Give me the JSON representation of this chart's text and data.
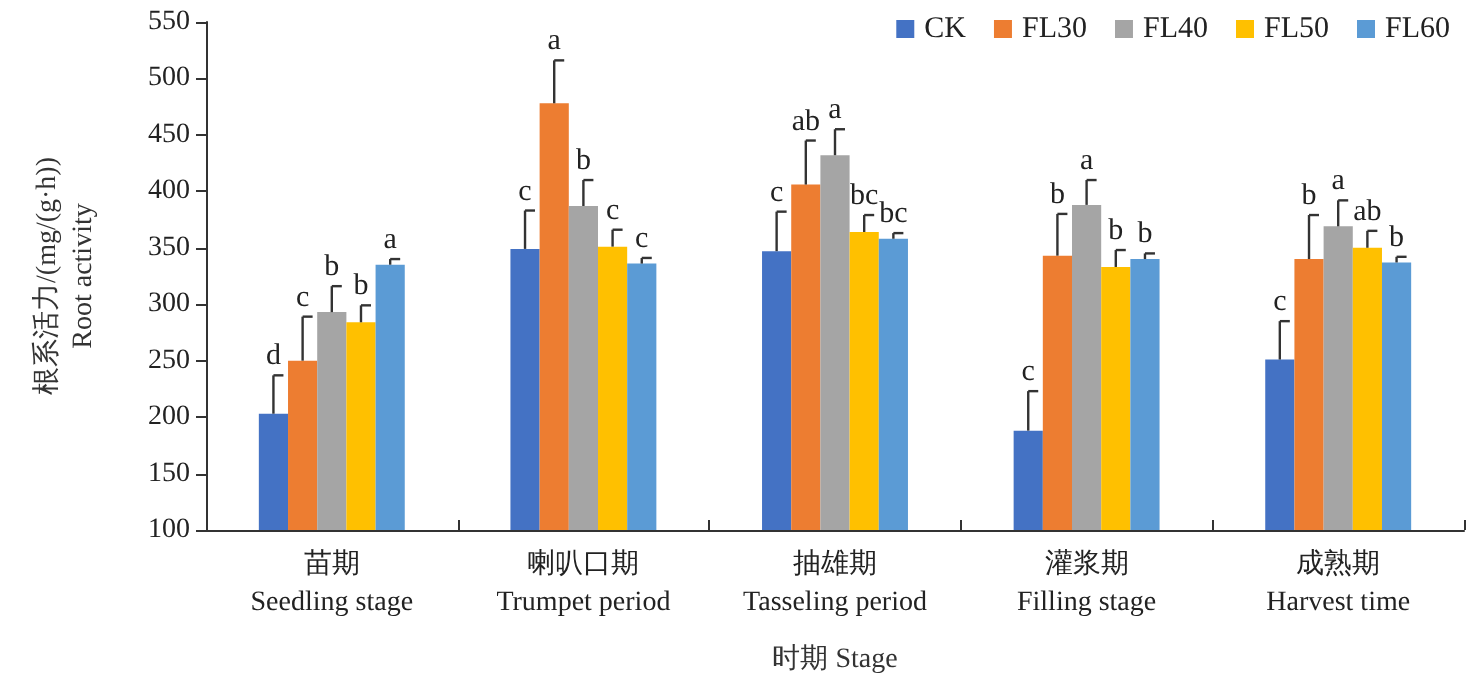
{
  "chart_data": {
    "type": "bar",
    "xlabel": "时期 Stage",
    "ylabel": "根系活力/(mg/(g·h))\nRoot activity",
    "categories": [
      "苗期\nSeedling stage",
      "喇叭口期\nTrumpet period",
      "抽雄期\nTasseling period",
      "灌浆期\nFilling stage",
      "成熟期\nHarvest time"
    ],
    "series": [
      {
        "name": "CK",
        "color": "#4472c4",
        "values": [
          203,
          349,
          347,
          188,
          251
        ],
        "errors": [
          34,
          34,
          35,
          35,
          34
        ],
        "value_labels": [
          "d",
          "c",
          "c",
          "c",
          "c"
        ]
      },
      {
        "name": "FL30",
        "color": "#ed7d31",
        "values": [
          250,
          478,
          406,
          343,
          340
        ],
        "errors": [
          39,
          38,
          39,
          37,
          39
        ],
        "value_labels": [
          "c",
          "a",
          "ab",
          "b",
          "b"
        ]
      },
      {
        "name": "FL40",
        "color": "#a5a5a5",
        "values": [
          293,
          387,
          432,
          388,
          369
        ],
        "errors": [
          23,
          23,
          23,
          22,
          23
        ],
        "value_labels": [
          "b",
          "b",
          "a",
          "a",
          "a"
        ]
      },
      {
        "name": "FL50",
        "color": "#ffc000",
        "values": [
          284,
          351,
          364,
          333,
          350
        ],
        "errors": [
          15,
          15,
          15,
          15,
          15
        ],
        "value_labels": [
          "b",
          "c",
          "bc",
          "b",
          "ab"
        ]
      },
      {
        "name": "FL60",
        "color": "#5b9bd5",
        "values": [
          335,
          336,
          358,
          340,
          337
        ],
        "errors": [
          5,
          5,
          5,
          5,
          5
        ],
        "value_labels": [
          "a",
          "c",
          "bc",
          "b",
          "b"
        ]
      }
    ],
    "ylim": [
      100,
      550
    ],
    "yticks": [
      100,
      150,
      200,
      250,
      300,
      350,
      400,
      450,
      500,
      550
    ],
    "grid": false,
    "legend": "top right"
  }
}
